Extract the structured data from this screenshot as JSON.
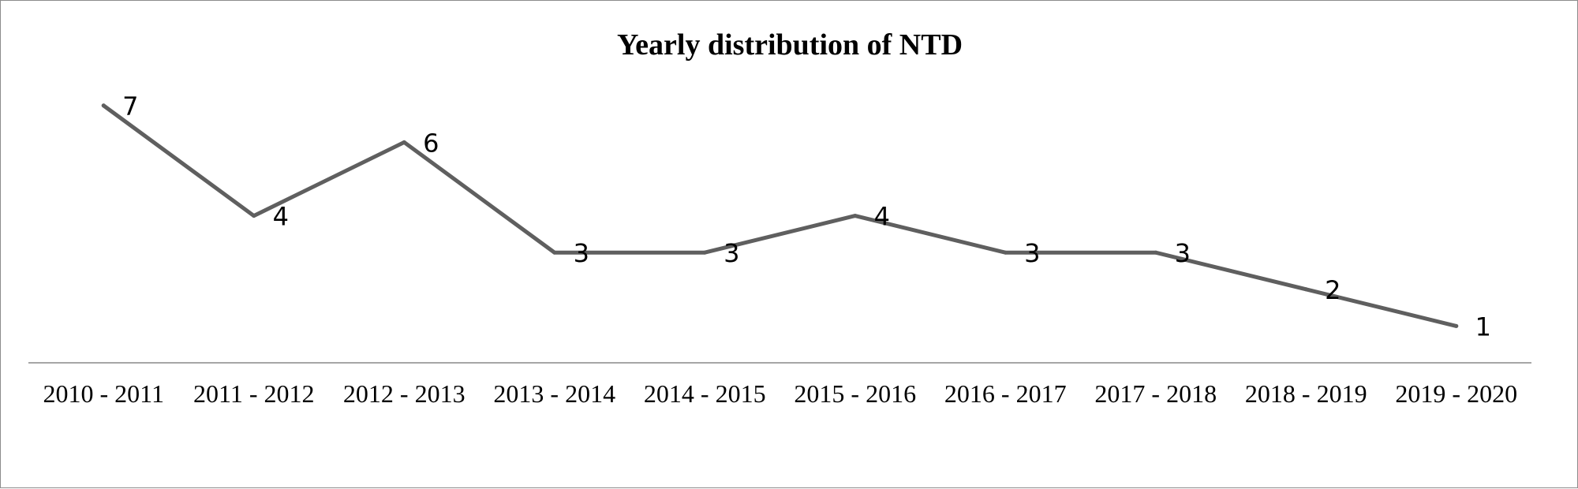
{
  "chart_data": {
    "type": "line",
    "title": "Yearly distribution of NTD",
    "xlabel": "",
    "ylabel": "",
    "categories": [
      "2010 - 2011",
      "2011 - 2012",
      "2012 - 2013",
      "2013 - 2014",
      "2014 - 2015",
      "2015 - 2016",
      "2016 - 2017",
      "2017 - 2018",
      "2018 - 2019",
      "2019 - 2020"
    ],
    "series": [
      {
        "values": [
          7,
          4,
          6,
          3,
          3,
          4,
          3,
          3,
          2,
          1
        ],
        "color": "#5f5f5f"
      }
    ],
    "ylim": [
      0,
      7
    ],
    "grid": false,
    "legend": "none",
    "data_labels": true
  }
}
